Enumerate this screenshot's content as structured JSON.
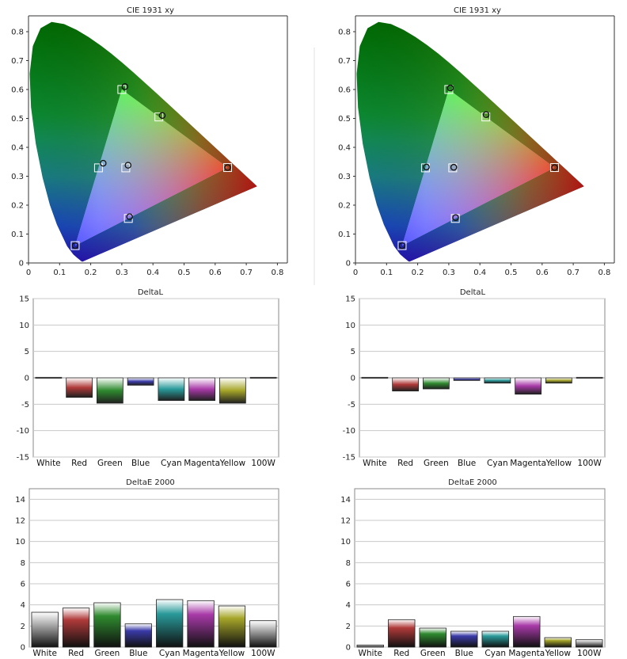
{
  "panels": [
    {
      "id": "cie-left",
      "title": "CIE 1931 xy"
    },
    {
      "id": "cie-right",
      "title": "CIE 1931 xy"
    },
    {
      "id": "deltal-left",
      "title": "DeltaL"
    },
    {
      "id": "deltal-right",
      "title": "DeltaL"
    },
    {
      "id": "deltae-left",
      "title": "DeltaE 2000"
    },
    {
      "id": "deltae-right",
      "title": "DeltaE 2000"
    }
  ],
  "chart_data": [
    {
      "type": "scatter",
      "title": "CIE 1931 xy",
      "xlim": [
        0,
        0.85
      ],
      "ylim": [
        0,
        0.85
      ],
      "xticks": [
        "0",
        "0.1",
        "0.2",
        "0.3",
        "0.4",
        "0.5",
        "0.6",
        "0.7",
        "0.8"
      ],
      "yticks": [
        "0",
        "0.1",
        "0.2",
        "0.3",
        "0.4",
        "0.5",
        "0.6",
        "0.7",
        "0.8"
      ],
      "targets": [
        {
          "x": 0.64,
          "y": 0.33
        },
        {
          "x": 0.3,
          "y": 0.6
        },
        {
          "x": 0.15,
          "y": 0.06
        },
        {
          "x": 0.225,
          "y": 0.329
        },
        {
          "x": 0.321,
          "y": 0.154
        },
        {
          "x": 0.419,
          "y": 0.505
        },
        {
          "x": 0.3127,
          "y": 0.329
        }
      ],
      "measured": [
        {
          "x": 0.64,
          "y": 0.33
        },
        {
          "x": 0.31,
          "y": 0.61
        },
        {
          "x": 0.15,
          "y": 0.06
        },
        {
          "x": 0.24,
          "y": 0.345
        },
        {
          "x": 0.325,
          "y": 0.16
        },
        {
          "x": 0.43,
          "y": 0.51
        },
        {
          "x": 0.32,
          "y": 0.338
        }
      ]
    },
    {
      "type": "scatter",
      "title": "CIE 1931 xy",
      "xlim": [
        0,
        0.85
      ],
      "ylim": [
        0,
        0.85
      ],
      "xticks": [
        "0",
        "0.1",
        "0.2",
        "0.3",
        "0.4",
        "0.5",
        "0.6",
        "0.7",
        "0.8"
      ],
      "yticks": [
        "0",
        "0.1",
        "0.2",
        "0.3",
        "0.4",
        "0.5",
        "0.6",
        "0.7",
        "0.8"
      ],
      "targets": [
        {
          "x": 0.64,
          "y": 0.33
        },
        {
          "x": 0.3,
          "y": 0.6
        },
        {
          "x": 0.15,
          "y": 0.06
        },
        {
          "x": 0.225,
          "y": 0.329
        },
        {
          "x": 0.321,
          "y": 0.154
        },
        {
          "x": 0.419,
          "y": 0.505
        },
        {
          "x": 0.3127,
          "y": 0.329
        }
      ],
      "measured": [
        {
          "x": 0.64,
          "y": 0.33
        },
        {
          "x": 0.305,
          "y": 0.605
        },
        {
          "x": 0.15,
          "y": 0.06
        },
        {
          "x": 0.228,
          "y": 0.332
        },
        {
          "x": 0.322,
          "y": 0.157
        },
        {
          "x": 0.42,
          "y": 0.513
        },
        {
          "x": 0.316,
          "y": 0.331
        }
      ]
    },
    {
      "type": "bar",
      "title": "DeltaL",
      "categories": [
        "White",
        "Red",
        "Green",
        "Blue",
        "Cyan",
        "Magenta",
        "Yellow",
        "100W"
      ],
      "values": [
        0.1,
        -3.7,
        -4.8,
        -1.4,
        -4.3,
        -4.3,
        -4.8,
        0.1
      ],
      "ylim": [
        -15,
        15
      ],
      "yticks": [
        "15",
        "10",
        "5",
        "0",
        "-5",
        "-10",
        "-15"
      ]
    },
    {
      "type": "bar",
      "title": "DeltaL",
      "categories": [
        "White",
        "Red",
        "Green",
        "Blue",
        "Cyan",
        "Magenta",
        "Yellow",
        "100W"
      ],
      "values": [
        0.1,
        -2.5,
        -2.1,
        -0.5,
        -1.0,
        -3.1,
        -1.0,
        0.1
      ],
      "ylim": [
        -15,
        15
      ],
      "yticks": [
        "15",
        "10",
        "5",
        "0",
        "-5",
        "-10",
        "-15"
      ]
    },
    {
      "type": "bar",
      "title": "DeltaE 2000",
      "categories": [
        "White",
        "Red",
        "Green",
        "Blue",
        "Cyan",
        "Magenta",
        "Yellow",
        "100W"
      ],
      "values": [
        3.3,
        3.7,
        4.2,
        2.2,
        4.5,
        4.4,
        3.9,
        2.5
      ],
      "ylim": [
        0,
        15
      ],
      "yticks": [
        "14",
        "12",
        "10",
        "8",
        "6",
        "4",
        "2",
        "0"
      ]
    },
    {
      "type": "bar",
      "title": "DeltaE 2000",
      "categories": [
        "White",
        "Red",
        "Green",
        "Blue",
        "Cyan",
        "Magenta",
        "Yellow",
        "100W"
      ],
      "values": [
        0.2,
        2.6,
        1.8,
        1.5,
        1.5,
        2.9,
        0.9,
        0.7
      ],
      "ylim": [
        0,
        15
      ],
      "yticks": [
        "14",
        "12",
        "10",
        "8",
        "6",
        "4",
        "2",
        "0"
      ]
    }
  ],
  "colors": {
    "White": "#b8b8b8",
    "Red": "#b03a3a",
    "Green": "#2f8a2f",
    "Blue": "#3a3aa8",
    "Cyan": "#2a9a9a",
    "Magenta": "#a83aa8",
    "Yellow": "#a6a62a",
    "100W": "#b8b8b8",
    "axis": "#333333",
    "grid": "#c8c8c8"
  }
}
